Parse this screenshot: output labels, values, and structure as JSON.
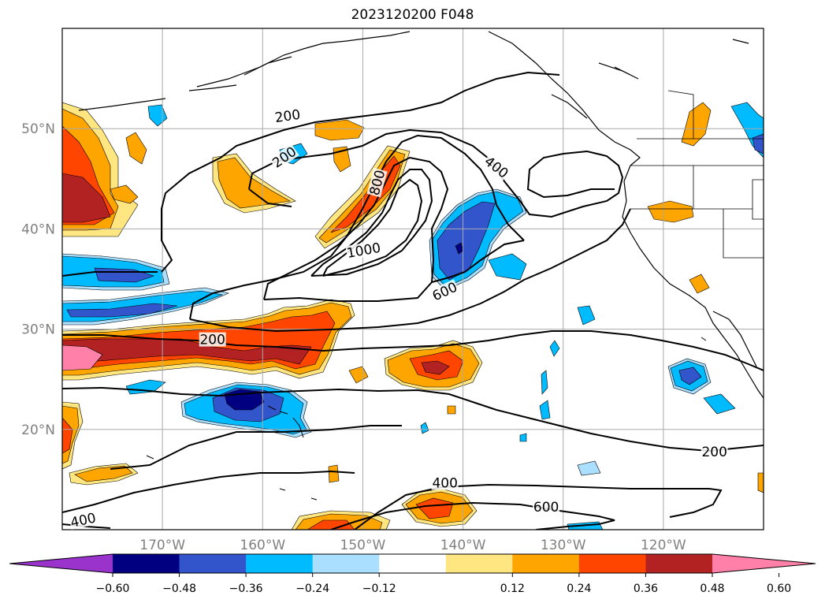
{
  "map": {
    "title": "2023120200 F048",
    "lon_ticks": [
      {
        "lon": -170,
        "label": "170°W"
      },
      {
        "lon": -160,
        "label": "160°W"
      },
      {
        "lon": -150,
        "label": "150°W"
      },
      {
        "lon": -140,
        "label": "140°W"
      },
      {
        "lon": -130,
        "label": "130°W"
      },
      {
        "lon": -120,
        "label": "120°W"
      }
    ],
    "lat_ticks": [
      {
        "lat": 20,
        "label": "20°N"
      },
      {
        "lat": 30,
        "label": "30°N"
      },
      {
        "lat": 40,
        "label": "40°N"
      },
      {
        "lat": 50,
        "label": "50°N"
      }
    ],
    "extent": {
      "lon_min": -180,
      "lon_max": -110,
      "lat_min": 10,
      "lat_max": 60
    },
    "contour_labels": [
      {
        "text": "200",
        "lon": -157.5,
        "lat": 51.2,
        "angle": -8
      },
      {
        "text": "200",
        "lon": -157.8,
        "lat": 47.1,
        "angle": -35
      },
      {
        "text": "400",
        "lon": -136.7,
        "lat": 46.1,
        "angle": 38
      },
      {
        "text": "800",
        "lon": -148.5,
        "lat": 44.6,
        "angle": -75
      },
      {
        "text": "1000",
        "lon": -149.9,
        "lat": 37.8,
        "angle": -10
      },
      {
        "text": "600",
        "lon": -141.8,
        "lat": 33.7,
        "angle": -25
      },
      {
        "text": "200",
        "lon": -165,
        "lat": 28.9,
        "angle": 0
      },
      {
        "text": "200",
        "lon": -114.9,
        "lat": 17.7,
        "angle": 0
      },
      {
        "text": "400",
        "lon": -141.8,
        "lat": 14.6,
        "angle": 0
      },
      {
        "text": "600",
        "lon": -131.7,
        "lat": 12.2,
        "angle": 0
      },
      {
        "text": "400",
        "lon": -177.9,
        "lat": 10.9,
        "angle": -12
      }
    ]
  },
  "colorbar": {
    "ticks": [
      "−0.60",
      "−0.48",
      "−0.36",
      "−0.24",
      "−0.12",
      "0.12",
      "0.24",
      "0.36",
      "0.48",
      "0.60"
    ],
    "colors": [
      "#9933cc",
      "#000080",
      "#3355cc",
      "#00bbff",
      "#aadfff",
      "#ffffff",
      "#ffe680",
      "#ffa500",
      "#ff4500",
      "#b22222",
      "#ff80a8"
    ]
  }
}
